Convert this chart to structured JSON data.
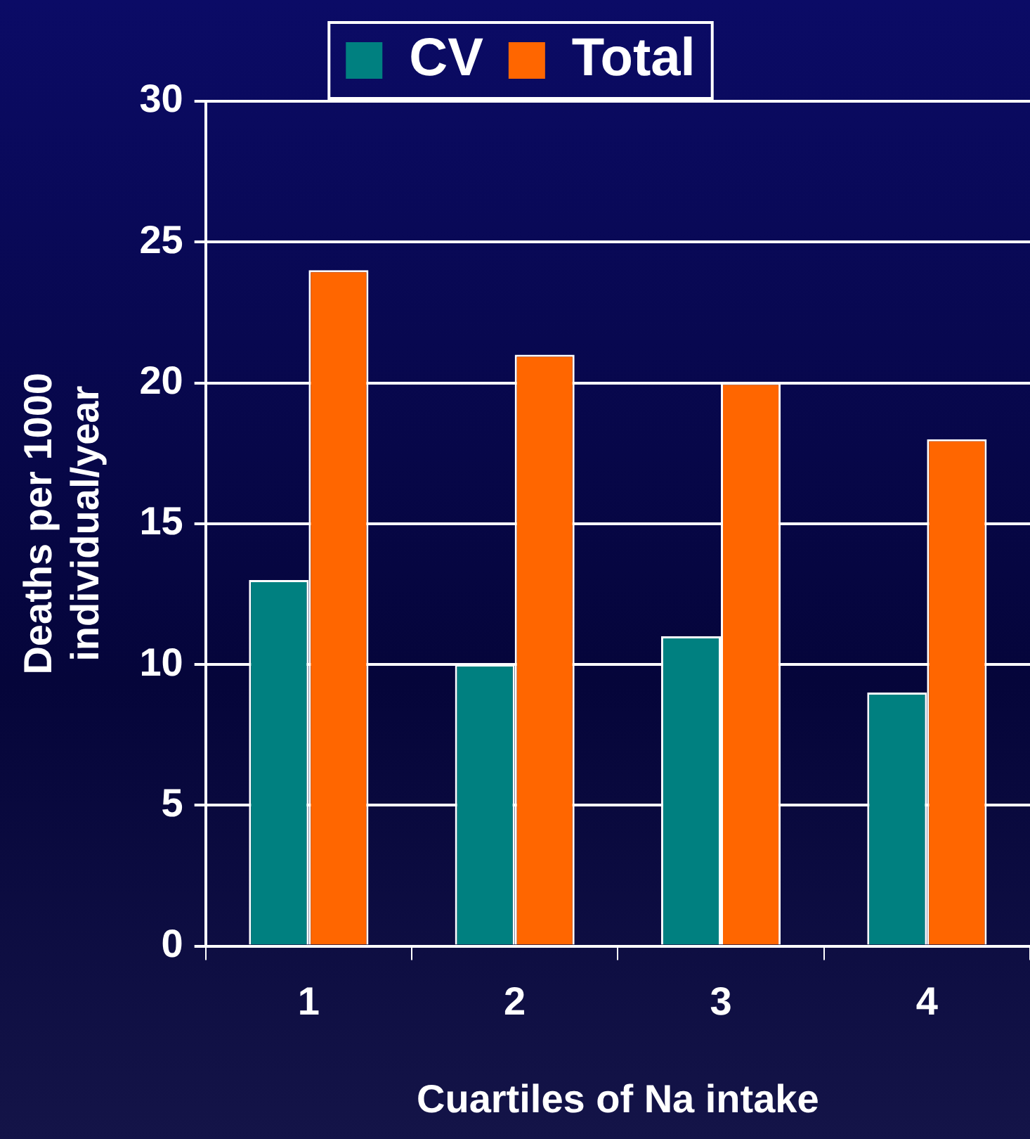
{
  "chart_data": {
    "type": "bar",
    "xlabel": "Cuartiles of Na intake",
    "ylabel": "Deaths per 1000 individual/year",
    "categories": [
      "1",
      "2",
      "3",
      "4"
    ],
    "series": [
      {
        "name": "CV",
        "color": "#008080",
        "values": [
          13,
          10,
          11,
          9
        ]
      },
      {
        "name": "Total",
        "color": "#ff6600",
        "values": [
          24,
          21,
          20,
          18
        ]
      }
    ],
    "ylim": [
      0,
      30
    ],
    "yticks": [
      0,
      5,
      10,
      15,
      20,
      25,
      30
    ],
    "grid": "y",
    "legend": "top"
  }
}
